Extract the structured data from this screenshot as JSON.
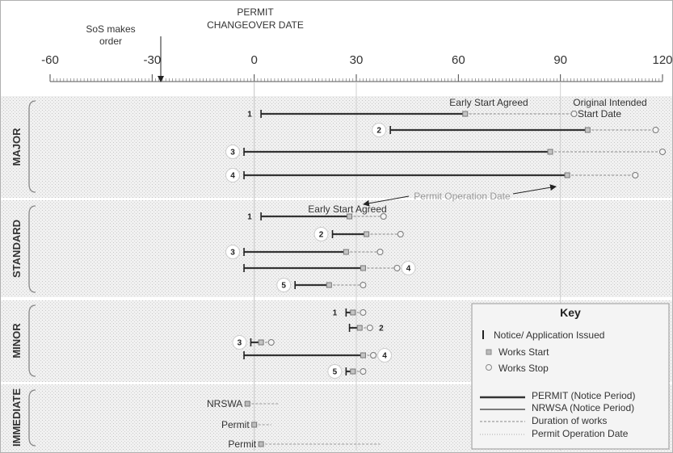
{
  "header": {
    "changeover_line1": "PERMIT",
    "changeover_line2": "CHANGEOVER DATE",
    "sos_line1": "SoS makes",
    "sos_line2": "order"
  },
  "axis": {
    "ticks": [
      "-60",
      "-30",
      "0",
      "30",
      "60",
      "90",
      "120"
    ],
    "range": [
      -60,
      120
    ],
    "permit_changeover_day": 0,
    "sos_order_day": -28,
    "permit_operation_day": 90
  },
  "sections": [
    {
      "label": "MAJOR",
      "rows": [
        {
          "num": "1",
          "notice": 2,
          "start": 62,
          "stop": 94,
          "badge": false,
          "num_side": "left"
        },
        {
          "num": "2",
          "notice": 40,
          "start": 98,
          "stop": 118,
          "badge": true,
          "num_side": "left"
        },
        {
          "num": "3",
          "notice": -3,
          "start": 87,
          "stop": 120,
          "badge": true,
          "num_side": "left"
        },
        {
          "num": "4",
          "notice": -3,
          "start": 92,
          "stop": 112,
          "badge": true,
          "num_side": "left"
        }
      ]
    },
    {
      "label": "STANDARD",
      "rows": [
        {
          "num": "1",
          "notice": 2,
          "start": 28,
          "stop": 38,
          "badge": false,
          "num_side": "left"
        },
        {
          "num": "2",
          "notice": 23,
          "start": 33,
          "stop": 43,
          "badge": true,
          "num_side": "left"
        },
        {
          "num": "3",
          "notice": -3,
          "start": 27,
          "stop": 37,
          "badge": true,
          "num_side": "left"
        },
        {
          "num": "4",
          "notice": -3,
          "start": 32,
          "stop": 42,
          "badge": true,
          "num_side": "right"
        },
        {
          "num": "5",
          "notice": 12,
          "start": 22,
          "stop": 32,
          "badge": true,
          "num_side": "left"
        }
      ]
    },
    {
      "label": "MINOR",
      "rows": [
        {
          "num": "1",
          "notice": 27,
          "start": 29,
          "stop": 32,
          "badge": false,
          "num_side": "left"
        },
        {
          "num": "2",
          "notice": 28,
          "start": 31,
          "stop": 34,
          "badge": false,
          "num_side": "right"
        },
        {
          "num": "3",
          "notice": -1,
          "start": 2,
          "stop": 5,
          "badge": true,
          "num_side": "left"
        },
        {
          "num": "4",
          "notice": -3,
          "start": 32,
          "stop": 35,
          "badge": true,
          "num_side": "right"
        },
        {
          "num": "5",
          "notice": 27,
          "start": 29,
          "stop": 32,
          "badge": true,
          "num_side": "left"
        }
      ]
    },
    {
      "label": "IMMEDIATE",
      "rows": [
        {
          "label": "NRSWA",
          "start": -2,
          "end": 7
        },
        {
          "label": "Permit",
          "start": 0,
          "end": 5
        },
        {
          "label": "Permit",
          "start": 2,
          "end": 37
        }
      ]
    }
  ],
  "annotations": {
    "early_start_major": "Early Start Agreed",
    "original_intended_line1": "Original Intended",
    "original_intended_line2": "Start Date",
    "permit_operation_date": "Permit Operation Date",
    "early_start_standard": "Early Start Agreed"
  },
  "key": {
    "title": "Key",
    "notice": "Notice/ Application Issued",
    "works_start": "Works Start",
    "works_stop": "Works Stop",
    "permit_notice": "PERMIT (Notice Period)",
    "nrswa_notice": "NRWSA (Notice Period)",
    "duration": "Duration of works",
    "permit_op": "Permit Operation Date"
  }
}
